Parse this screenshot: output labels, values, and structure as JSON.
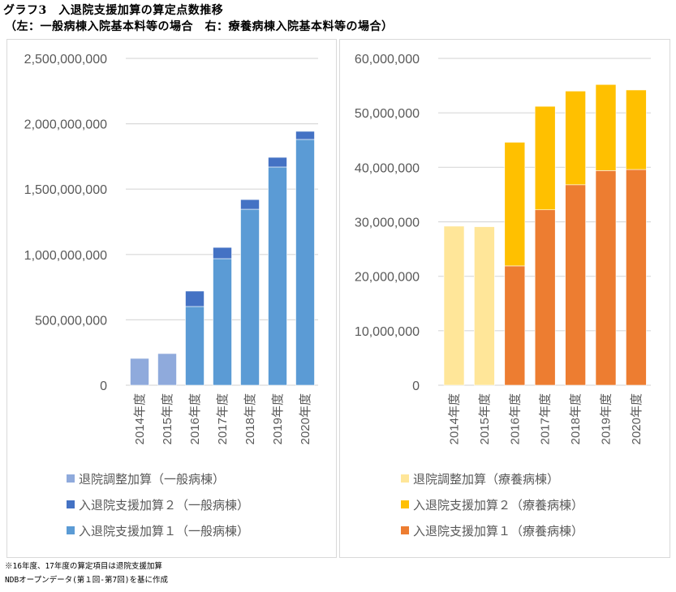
{
  "header": {
    "title": "グラフ3　入退院支援加算の算定点数推移",
    "subtitle": "（左：一般病棟入院基本料等の場合　右：療養病棟入院基本料等の場合）"
  },
  "footnotes": [
    "※16年度、17年度の算定項目は退院支援加算",
    "NDBオープンデータ(第１回-第7回)を基に作成"
  ],
  "chart_data": [
    {
      "type": "bar",
      "stacked": true,
      "title": "一般病棟入院基本料等の場合",
      "categories": [
        "2014年度",
        "2015年度",
        "2016年度",
        "2017年度",
        "2018年度",
        "2019年度",
        "2020年度"
      ],
      "series": [
        {
          "name": "入退院支援加算１（一般病棟）",
          "color": "#5b9bd5",
          "values": [
            0,
            0,
            602000000,
            968000000,
            1346000000,
            1669000000,
            1880000000
          ]
        },
        {
          "name": "入退院支援加算２（一般病棟）",
          "color": "#4472c4",
          "values": [
            0,
            0,
            118000000,
            86000000,
            74000000,
            74000000,
            62000000
          ]
        },
        {
          "name": "退院調整加算（一般病棟）",
          "color": "#8faadc",
          "values": [
            205000000,
            242000000,
            0,
            0,
            0,
            0,
            0
          ]
        }
      ],
      "legend_order": [
        "退院調整加算（一般病棟）",
        "入退院支援加算２（一般病棟）",
        "入退院支援加算１（一般病棟）"
      ],
      "ylim": [
        0,
        2500000000
      ],
      "yticks": [
        0,
        500000000,
        1000000000,
        1500000000,
        2000000000,
        2500000000
      ],
      "ytick_labels": [
        "0",
        "500,000,000",
        "1,000,000,000",
        "1,500,000,000",
        "2,000,000,000",
        "2,500,000,000"
      ],
      "xlabel": "",
      "ylabel": "",
      "grid": true,
      "legend_position": "bottom"
    },
    {
      "type": "bar",
      "stacked": true,
      "title": "療養病棟入院基本料等の場合",
      "categories": [
        "2014年度",
        "2015年度",
        "2016年度",
        "2017年度",
        "2018年度",
        "2019年度",
        "2020年度"
      ],
      "series": [
        {
          "name": "入退院支援加算１（療養病棟）",
          "color": "#ed7d31",
          "values": [
            0,
            0,
            21900000,
            32200000,
            36800000,
            39400000,
            39600000
          ]
        },
        {
          "name": "入退院支援加算２（療養病棟）",
          "color": "#ffc000",
          "values": [
            0,
            0,
            22700000,
            19000000,
            17200000,
            15800000,
            14600000
          ]
        },
        {
          "name": "退院調整加算（療養病棟）",
          "color": "#ffe699",
          "values": [
            29200000,
            29100000,
            0,
            0,
            0,
            0,
            0
          ]
        }
      ],
      "legend_order": [
        "退院調整加算（療養病棟）",
        "入退院支援加算２（療養病棟）",
        "入退院支援加算１（療養病棟）"
      ],
      "ylim": [
        0,
        60000000
      ],
      "yticks": [
        0,
        10000000,
        20000000,
        30000000,
        40000000,
        50000000,
        60000000
      ],
      "ytick_labels": [
        "0",
        "10,000,000",
        "20,000,000",
        "30,000,000",
        "40,000,000",
        "50,000,000",
        "60,000,000"
      ],
      "xlabel": "",
      "ylabel": "",
      "grid": true,
      "legend_position": "bottom"
    }
  ],
  "legends": {
    "left": [
      {
        "label": "退院調整加算（一般病棟）",
        "color": "#8faadc"
      },
      {
        "label": "入退院支援加算２（一般病棟）",
        "color": "#4472c4"
      },
      {
        "label": "入退院支援加算１（一般病棟）",
        "color": "#5b9bd5"
      }
    ],
    "right": [
      {
        "label": "退院調整加算（療養病棟）",
        "color": "#ffe699"
      },
      {
        "label": "入退院支援加算２（療養病棟）",
        "color": "#ffc000"
      },
      {
        "label": "入退院支援加算１（療養病棟）",
        "color": "#ed7d31"
      }
    ]
  }
}
